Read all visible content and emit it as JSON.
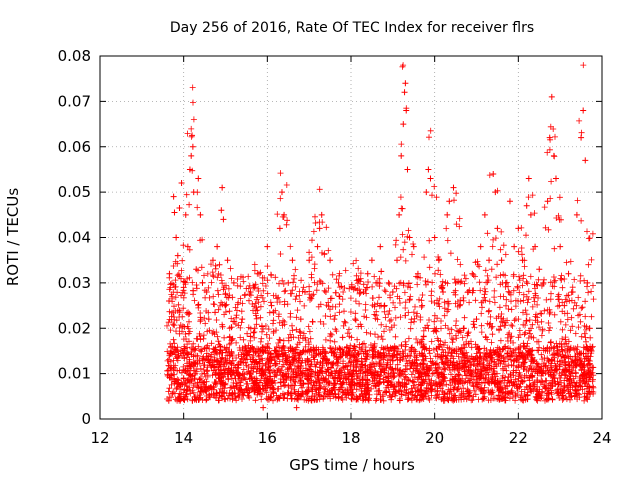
{
  "chart_data": {
    "type": "scatter",
    "title": "Day 256 of 2016, Rate Of TEC Index for receiver flrs",
    "xlabel": "GPS time / hours",
    "ylabel": "ROTI / TECUs",
    "xlim": [
      12,
      24
    ],
    "ylim": [
      0,
      0.08
    ],
    "grid": true,
    "marker": "+",
    "color": "#ff0000",
    "x_ticks": [
      "12",
      "14",
      "16",
      "18",
      "20",
      "22",
      "24"
    ],
    "y_ticks": [
      "0",
      "0.01",
      "0.02",
      "0.03",
      "0.04",
      "0.05",
      "0.06",
      "0.07",
      "0.08"
    ],
    "series": [
      {
        "name": "ROTI",
        "points": [
          [
            13.62,
            0.0095
          ],
          [
            13.65,
            0.026
          ],
          [
            13.66,
            0.032
          ],
          [
            13.7,
            0.015
          ],
          [
            13.73,
            0.0056
          ],
          [
            13.76,
            0.049
          ],
          [
            13.78,
            0.0455
          ],
          [
            13.82,
            0.04
          ],
          [
            13.86,
            0.036
          ],
          [
            13.9,
            0.0465
          ],
          [
            13.95,
            0.052
          ],
          [
            14.0,
            0.029
          ],
          [
            14.05,
            0.045
          ],
          [
            14.1,
            0.038
          ],
          [
            14.15,
            0.055
          ],
          [
            14.18,
            0.058
          ],
          [
            14.2,
            0.0625
          ],
          [
            14.22,
            0.06
          ],
          [
            14.24,
            0.05
          ],
          [
            14.3,
            0.033
          ],
          [
            14.35,
            0.053
          ],
          [
            14.4,
            0.045
          ],
          [
            14.45,
            0.03
          ],
          [
            14.5,
            0.0155
          ],
          [
            14.55,
            0.028
          ],
          [
            14.6,
            0.022
          ],
          [
            14.7,
            0.035
          ],
          [
            14.75,
            0.0235
          ],
          [
            14.8,
            0.038
          ],
          [
            14.9,
            0.046
          ],
          [
            14.92,
            0.051
          ],
          [
            14.95,
            0.044
          ],
          [
            15.0,
            0.025
          ],
          [
            15.05,
            0.035
          ],
          [
            15.1,
            0.018
          ],
          [
            15.2,
            0.03
          ],
          [
            15.3,
            0.012
          ],
          [
            15.4,
            0.022
          ],
          [
            15.5,
            0.015
          ],
          [
            15.6,
            0.028
          ],
          [
            15.7,
            0.02
          ],
          [
            15.8,
            0.032
          ],
          [
            15.9,
            0.0025
          ],
          [
            16.0,
            0.038
          ],
          [
            16.1,
            0.025
          ],
          [
            16.2,
            0.015
          ],
          [
            16.3,
            0.042
          ],
          [
            16.35,
            0.05
          ],
          [
            16.4,
            0.045
          ],
          [
            16.5,
            0.03
          ],
          [
            16.6,
            0.035
          ],
          [
            16.7,
            0.0025
          ],
          [
            16.8,
            0.022
          ],
          [
            16.9,
            0.028
          ],
          [
            17.0,
            0.035
          ],
          [
            17.1,
            0.015
          ],
          [
            17.2,
            0.038
          ],
          [
            17.25,
            0.042
          ],
          [
            17.3,
            0.045
          ],
          [
            17.4,
            0.028
          ],
          [
            17.5,
            0.035
          ],
          [
            17.6,
            0.022
          ],
          [
            17.7,
            0.03
          ],
          [
            17.8,
            0.018
          ],
          [
            17.9,
            0.015
          ],
          [
            18.0,
            0.01
          ],
          [
            18.1,
            0.022
          ],
          [
            18.2,
            0.005
          ],
          [
            18.3,
            0.028
          ],
          [
            18.4,
            0.032
          ],
          [
            18.5,
            0.035
          ],
          [
            18.6,
            0.03
          ],
          [
            18.7,
            0.038
          ],
          [
            18.8,
            0.025
          ],
          [
            18.9,
            0.03
          ],
          [
            19.0,
            0.028
          ],
          [
            19.1,
            0.035
          ],
          [
            19.15,
            0.045
          ],
          [
            19.2,
            0.058
          ],
          [
            19.25,
            0.065
          ],
          [
            19.28,
            0.072
          ],
          [
            19.3,
            0.074
          ],
          [
            19.32,
            0.068
          ],
          [
            19.35,
            0.055
          ],
          [
            19.4,
            0.04
          ],
          [
            19.5,
            0.038
          ],
          [
            19.6,
            0.032
          ],
          [
            19.7,
            0.025
          ],
          [
            19.8,
            0.05
          ],
          [
            19.85,
            0.055
          ],
          [
            19.9,
            0.053
          ],
          [
            20.0,
            0.04
          ],
          [
            20.1,
            0.035
          ],
          [
            20.2,
            0.028
          ],
          [
            20.3,
            0.045
          ],
          [
            20.35,
            0.048
          ],
          [
            20.45,
            0.051
          ],
          [
            20.5,
            0.03
          ],
          [
            20.6,
            0.025
          ],
          [
            20.7,
            0.02
          ],
          [
            20.8,
            0.028
          ],
          [
            20.9,
            0.032
          ],
          [
            21.0,
            0.022
          ],
          [
            21.1,
            0.038
          ],
          [
            21.2,
            0.045
          ],
          [
            21.3,
            0.035
          ],
          [
            21.4,
            0.054
          ],
          [
            21.45,
            0.05
          ],
          [
            21.5,
            0.042
          ],
          [
            21.6,
            0.035
          ],
          [
            21.7,
            0.03
          ],
          [
            21.8,
            0.048
          ],
          [
            21.9,
            0.038
          ],
          [
            22.0,
            0.042
          ],
          [
            22.1,
            0.035
          ],
          [
            22.2,
            0.047
          ],
          [
            22.25,
            0.053
          ],
          [
            22.3,
            0.045
          ],
          [
            22.4,
            0.038
          ],
          [
            22.5,
            0.033
          ],
          [
            22.6,
            0.03
          ],
          [
            22.7,
            0.048
          ],
          [
            22.75,
            0.062
          ],
          [
            22.8,
            0.071
          ],
          [
            22.85,
            0.058
          ],
          [
            22.9,
            0.053
          ],
          [
            23.0,
            0.038
          ],
          [
            23.1,
            0.025
          ],
          [
            23.2,
            0.032
          ],
          [
            23.3,
            0.028
          ],
          [
            23.4,
            0.045
          ],
          [
            23.5,
            0.062
          ],
          [
            23.55,
            0.068
          ],
          [
            23.6,
            0.057
          ],
          [
            23.65,
            0.03
          ],
          [
            23.7,
            0.02
          ],
          [
            23.75,
            0.015
          ]
        ]
      }
    ]
  }
}
